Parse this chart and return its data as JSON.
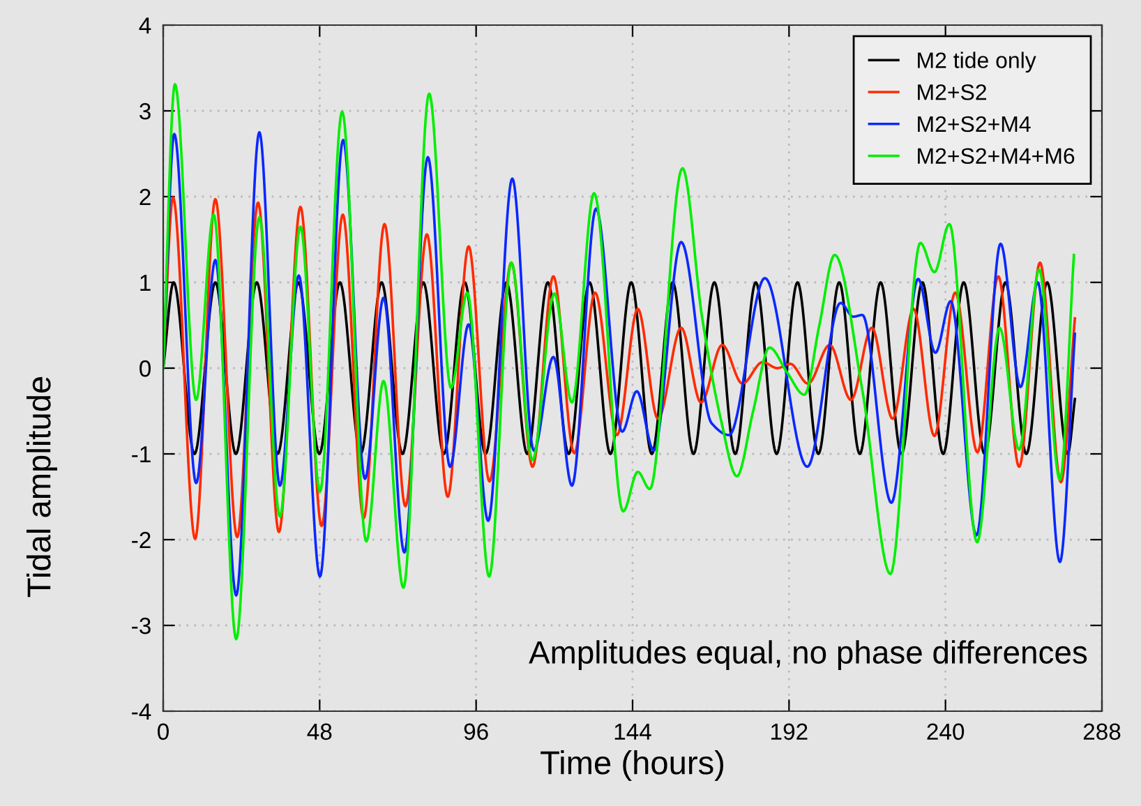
{
  "chart_data": {
    "type": "line",
    "xlabel": "Time (hours)",
    "ylabel": "Tidal amplitude",
    "annotations": [
      "Amplitudes equal, no phase differences"
    ],
    "xlim": [
      0,
      288
    ],
    "xticks": [
      0,
      48,
      96,
      144,
      192,
      240,
      288
    ],
    "ylim": [
      -4,
      4
    ],
    "yticks": [
      -4,
      -3,
      -2,
      -1,
      0,
      1,
      2,
      3,
      4
    ],
    "grid": true,
    "legend": "top right",
    "marker": "none",
    "line_style": "solid",
    "series": [
      {
        "name": "M2 tide only",
        "color": "#000000",
        "x": [
          0,
          3.2,
          9.6,
          16.0,
          22.3,
          28.7,
          35.1,
          41.5,
          47.9,
          54.2,
          60.6,
          67.0,
          73.4,
          79.8,
          86.1,
          92.5,
          98.9,
          105.3,
          111.7,
          118.0,
          124.4,
          130.8,
          137.2,
          143.6,
          149.9,
          156.3,
          162.7,
          169.1,
          175.5,
          181.8,
          188.2,
          194.6,
          201.0,
          207.4,
          213.7,
          220.1,
          226.5,
          232.9,
          239.3,
          245.6,
          252.0,
          258.4,
          264.8,
          271.2,
          277.5,
          279.7
        ],
        "values": [
          0,
          1,
          -1,
          1,
          -1,
          1,
          -1,
          1,
          -1,
          1,
          -1,
          1,
          -1,
          1,
          -1,
          1,
          -1,
          1,
          -1,
          1,
          -1,
          1,
          -1,
          1,
          -1,
          1,
          -1,
          1,
          -1,
          1,
          -1,
          1,
          -1,
          1,
          -1,
          1,
          -1,
          1,
          -1,
          1,
          -1,
          1,
          -1,
          1,
          -1,
          -0.36
        ]
      },
      {
        "name": "M2+S2",
        "color": "#ff2a00",
        "x": [
          0,
          3.0,
          9.8,
          16.0,
          22.7,
          29.1,
          35.5,
          42.1,
          48.6,
          55.1,
          61.5,
          67.9,
          74.3,
          80.9,
          87.3,
          93.7,
          100.1,
          106.8,
          113.3,
          119.7,
          126.1,
          132.5,
          139.2,
          145.6,
          151.8,
          158.9,
          165.0,
          171.5,
          177.7,
          183.9,
          188.4,
          192.4,
          197.8,
          204.5,
          211.0,
          217.4,
          223.8,
          230.2,
          236.6,
          243.0,
          249.8,
          256.2,
          262.6,
          269.0,
          275.4,
          279.7
        ],
        "values": [
          0,
          1.99,
          -1.99,
          1.97,
          -1.97,
          1.93,
          -1.91,
          1.88,
          -1.84,
          1.79,
          -1.75,
          1.68,
          -1.61,
          1.56,
          -1.5,
          1.42,
          -1.32,
          1.23,
          -1.15,
          1.07,
          -0.99,
          0.88,
          -0.78,
          0.69,
          -0.59,
          0.47,
          -0.4,
          0.27,
          -0.18,
          0.07,
          0.0,
          0.05,
          -0.18,
          0.27,
          -0.37,
          0.47,
          -0.59,
          0.69,
          -0.79,
          0.88,
          -0.98,
          1.07,
          -1.15,
          1.23,
          -1.33,
          0.58
        ]
      },
      {
        "name": "M2+S2+M4",
        "color": "#0a28ff",
        "x": [
          0,
          3.4,
          10.1,
          16.0,
          22.4,
          29.5,
          35.8,
          41.6,
          48.1,
          55.2,
          61.9,
          67.6,
          74.0,
          81.2,
          88.0,
          93.7,
          99.7,
          107.1,
          113.7,
          119.7,
          125.4,
          132.8,
          140.8,
          145.3,
          150.5,
          158.9,
          168.2,
          173.6,
          184.6,
          197.6,
          207.8,
          211.7,
          214.5,
          223.4,
          231.6,
          236.9,
          241.6,
          249.5,
          256.9,
          263.0,
          268.3,
          275.1,
          279.7
        ],
        "values": [
          0,
          2.73,
          -1.34,
          1.26,
          -2.65,
          2.75,
          -1.37,
          1.08,
          -2.43,
          2.66,
          -1.29,
          0.82,
          -2.15,
          2.46,
          -1.15,
          0.51,
          -1.78,
          2.21,
          -0.96,
          0.13,
          -1.37,
          1.86,
          -0.74,
          -0.27,
          -0.96,
          1.47,
          -0.64,
          -0.78,
          1.05,
          -1.15,
          0.76,
          0.6,
          0.62,
          -1.57,
          1.04,
          0.18,
          0.78,
          -1.95,
          1.45,
          -0.22,
          1.0,
          -2.26,
          0.4
        ]
      },
      {
        "name": "M2+S2+M4+M6",
        "color": "#00ee00",
        "x": [
          0,
          3.6,
          10.1,
          15.5,
          22.4,
          29.5,
          35.8,
          42.1,
          48.1,
          54.9,
          62.3,
          67.6,
          73.7,
          81.6,
          88.3,
          93.3,
          100.0,
          106.8,
          113.3,
          120.0,
          125.4,
          132.2,
          141.1,
          145.6,
          149.3,
          159.3,
          165.3,
          171.1,
          176.0,
          181.0,
          186.0,
          191.4,
          196.7,
          201.3,
          206.0,
          214.5,
          223.1,
          232.3,
          236.6,
          241.2,
          249.7,
          256.6,
          262.6,
          268.7,
          275.1,
          279.4
        ],
        "values": [
          0,
          3.31,
          -0.37,
          1.79,
          -3.16,
          1.76,
          -1.73,
          1.65,
          -1.44,
          2.99,
          -2.02,
          -0.15,
          -2.56,
          3.2,
          -0.23,
          0.88,
          -2.43,
          1.23,
          -1.07,
          0.87,
          -0.4,
          2.04,
          -1.67,
          -1.21,
          -1.41,
          2.33,
          0.6,
          -0.6,
          -1.26,
          -0.5,
          0.24,
          -0.05,
          -0.31,
          0.5,
          1.32,
          -0.26,
          -2.4,
          1.46,
          1.12,
          1.68,
          -2.03,
          0.47,
          -0.95,
          1.15,
          -1.3,
          1.32
        ]
      }
    ]
  }
}
